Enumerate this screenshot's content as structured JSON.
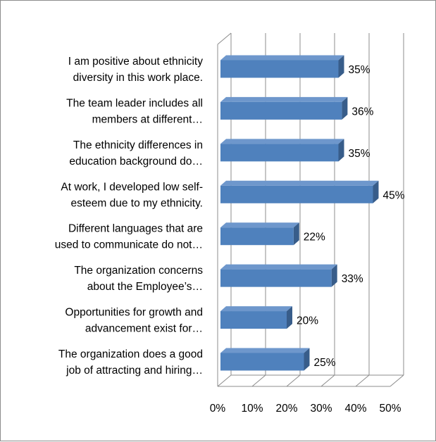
{
  "chart_data": {
    "type": "bar",
    "orientation": "horizontal",
    "style": "3d-clustered",
    "title": "",
    "xlabel": "",
    "ylabel": "",
    "xlim": [
      0,
      50
    ],
    "grid": true,
    "legend": "none",
    "colors": {
      "bar_front": "#4f81bd",
      "bar_top": "#6e97cc",
      "bar_side": "#385d8a",
      "grid": "#8c8c8c"
    },
    "x_ticks": [
      "0%",
      "10%",
      "20%",
      "30%",
      "40%",
      "50%"
    ],
    "categories": [
      [
        "I am positive about ethnicity",
        "diversity in this work place."
      ],
      [
        "The team leader includes all",
        "members at different…"
      ],
      [
        "The ethnicity differences in",
        "education background do…"
      ],
      [
        "At work, I developed low self-",
        "esteem due to my ethnicity."
      ],
      [
        "Different languages that are",
        "used to communicate do not…"
      ],
      [
        "The organization concerns",
        "about the Employee’s…"
      ],
      [
        "Opportunities for growth and",
        "advancement exist for…"
      ],
      [
        "The organization does a good",
        "job of attracting and hiring…"
      ]
    ],
    "values": [
      35,
      36,
      35,
      45,
      22,
      33,
      20,
      25
    ],
    "data_labels": [
      "35%",
      "36%",
      "35%",
      "45%",
      "22%",
      "33%",
      "20%",
      "25%"
    ]
  }
}
